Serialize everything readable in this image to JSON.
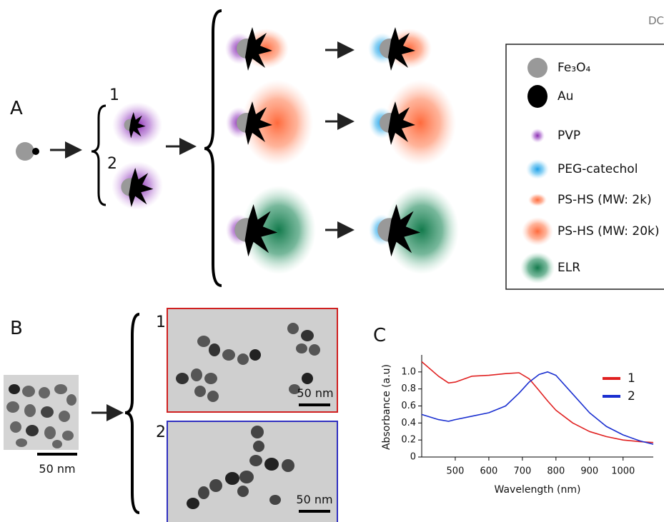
{
  "corner_text": "DC",
  "panel_a": {
    "label": "A",
    "branch_labels": [
      "1",
      "2"
    ],
    "legend": [
      "Fe₃O₄",
      "Au",
      "PVP",
      "PEG-catechol",
      "PS-HS  (MW: 2k)",
      "PS-HS  (MW: 20k)",
      "ELR"
    ]
  },
  "panel_b": {
    "label": "B",
    "branch_labels": [
      "1",
      "2"
    ],
    "scale_bars": [
      "50 nm",
      "50 nm",
      "50 nm"
    ]
  },
  "panel_c": {
    "label": "C"
  },
  "chart_data": {
    "type": "line",
    "x_label": "Wavelength (nm)",
    "y_label": "Absorbance (a.u)",
    "x": [
      400,
      450,
      480,
      500,
      550,
      600,
      650,
      690,
      720,
      750,
      775,
      800,
      850,
      900,
      950,
      1000,
      1050,
      1090
    ],
    "series": [
      {
        "name": "1",
        "color": "#e02020",
        "values": [
          1.12,
          0.95,
          0.87,
          0.88,
          0.95,
          0.96,
          0.98,
          0.99,
          0.92,
          0.78,
          0.66,
          0.55,
          0.4,
          0.3,
          0.24,
          0.2,
          0.18,
          0.17
        ]
      },
      {
        "name": "2",
        "color": "#1a2fd0",
        "values": [
          0.5,
          0.44,
          0.42,
          0.44,
          0.48,
          0.52,
          0.6,
          0.75,
          0.88,
          0.97,
          1.0,
          0.96,
          0.74,
          0.52,
          0.36,
          0.26,
          0.19,
          0.15
        ]
      }
    ],
    "xlim": [
      400,
      1090
    ],
    "xticks": [
      500,
      600,
      700,
      800,
      900,
      1000
    ],
    "ylim": [
      0,
      1.2
    ],
    "yticks": [
      0,
      {
        "value": 0.2,
        "label": "0.2"
      },
      {
        "value": 0.4,
        "label": "0.4"
      },
      {
        "value": 0.6,
        "label": "0.6"
      },
      {
        "value": 0.8,
        "label": "0.8"
      },
      {
        "value": 1,
        "label": "1.0"
      }
    ]
  }
}
